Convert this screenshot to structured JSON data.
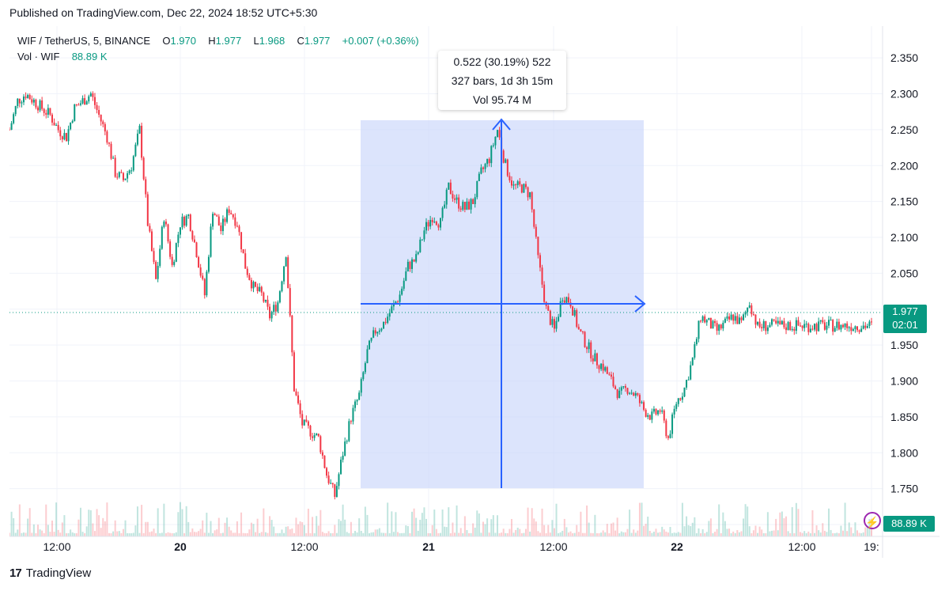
{
  "published": "Published on TradingView.com, Dec 22, 2024 18:52 UTC+5:30",
  "brand": "TradingView",
  "legend": {
    "symbol": "WIF / TetherUS, 5, BINANCE",
    "o_label": "O",
    "o_value": "1.970",
    "h_label": "H",
    "h_value": "1.977",
    "l_label": "L",
    "l_value": "1.968",
    "c_label": "C",
    "c_value": "1.977",
    "change": "+0.007 (+0.36%)",
    "vol_label": "Vol · WIF",
    "vol_value": "88.89 K"
  },
  "measure": {
    "line1": "0.522 (30.19%) 522",
    "line2": "327 bars, 1d 3h 15m",
    "line3": "Vol 95.74 M"
  },
  "price_tag": {
    "price": "1.977",
    "countdown": "02:01"
  },
  "volume_tag": "88.89 K",
  "colors": {
    "up": "#089981",
    "down": "#f23645",
    "range_fill": "#c9d5fb",
    "range_line": "#2962ff"
  },
  "chart_data": {
    "type": "candlestick",
    "title": "WIF / TetherUS, 5, BINANCE",
    "ylim": [
      1.7,
      2.37
    ],
    "y_ticks": [
      "2.350",
      "2.300",
      "2.250",
      "2.200",
      "2.150",
      "2.100",
      "2.050",
      "2.000",
      "1.950",
      "1.900",
      "1.850",
      "1.800",
      "1.750",
      "1.700"
    ],
    "x_ticks": [
      "12:00",
      "20",
      "12:00",
      "21",
      "12:00",
      "22",
      "12:00",
      "19:"
    ],
    "x_range_hours": [
      0,
      84
    ],
    "x_tick_hours": [
      12,
      24,
      36,
      48,
      60,
      72,
      84,
      95
    ],
    "current_price": 1.977,
    "series": [
      {
        "name": "price",
        "x": [
          0,
          1,
          2,
          3,
          4,
          5,
          6,
          7,
          8,
          9,
          10,
          11,
          12,
          13,
          14,
          15,
          16,
          17,
          18,
          19,
          20,
          21,
          22,
          23,
          24,
          25,
          26,
          27,
          28,
          29,
          30,
          31,
          32,
          33,
          34,
          35,
          36,
          37,
          38,
          39,
          40,
          41,
          42,
          43,
          44,
          45,
          46,
          47,
          48,
          49,
          50,
          51,
          52,
          53,
          54,
          55,
          56,
          57,
          58,
          59,
          60,
          61,
          62,
          63,
          64,
          65,
          66,
          67,
          68,
          69,
          70,
          71,
          72,
          73,
          74,
          75,
          76,
          77,
          78,
          79,
          80,
          81,
          82,
          83,
          84,
          85,
          86,
          87,
          88,
          89,
          90,
          91,
          92,
          93,
          94,
          95,
          96,
          97,
          98,
          99,
          100,
          101,
          102,
          103,
          104,
          105,
          106
        ],
        "y": [
          2.25,
          2.29,
          2.3,
          2.29,
          2.28,
          2.27,
          2.25,
          2.24,
          2.28,
          2.29,
          2.3,
          2.27,
          2.24,
          2.19,
          2.18,
          2.2,
          2.25,
          2.12,
          2.04,
          2.13,
          2.06,
          2.12,
          2.13,
          2.08,
          2.02,
          2.14,
          2.11,
          2.14,
          2.12,
          2.06,
          2.03,
          2.02,
          1.99,
          2.01,
          2.08,
          1.89,
          1.84,
          1.83,
          1.82,
          1.77,
          1.74,
          1.8,
          1.85,
          1.88,
          1.94,
          1.97,
          1.98,
          2.0,
          2.02,
          2.06,
          2.07,
          2.11,
          2.13,
          2.12,
          2.17,
          2.15,
          2.14,
          2.15,
          2.19,
          2.21,
          2.25,
          2.2,
          2.17,
          2.17,
          2.16,
          2.07,
          2.0,
          1.97,
          2.02,
          2.01,
          1.97,
          1.95,
          1.93,
          1.92,
          1.9,
          1.88,
          1.89,
          1.88,
          1.86,
          1.85,
          1.86,
          1.82,
          1.87,
          1.89,
          1.93,
          1.99,
          1.98,
          1.97,
          1.98,
          1.99,
          1.98,
          2.01,
          1.975,
          1.977,
          1.977,
          1.977,
          1.977,
          1.977,
          1.977,
          1.977,
          1.977,
          1.977,
          1.977,
          1.977,
          1.977,
          1.977,
          1.977
        ]
      }
    ],
    "measured_range": {
      "from": 1.728,
      "to": 2.25,
      "change": "0.522 (30.19%) 522",
      "bars": "327 bars, 1d 3h 15m",
      "volume": "Vol 95.74 M"
    }
  }
}
